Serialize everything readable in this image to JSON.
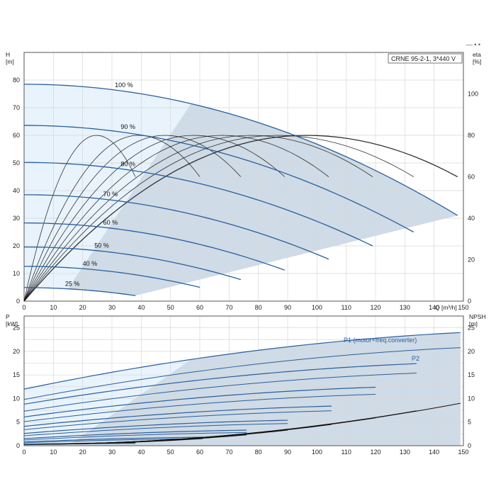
{
  "header_mark": "— • •",
  "chart_data": [
    {
      "type": "line",
      "title": "CRNE 95-2-1, 3*440 V",
      "xlabel": "Q [m³/h]",
      "ylabel": "H\n[m]",
      "ylabel_right": "eta\n[%]",
      "xlim": [
        0,
        150
      ],
      "ylim": [
        0,
        90
      ],
      "ylim_right": [
        0,
        120
      ],
      "x_ticks": [
        0,
        10,
        20,
        30,
        40,
        50,
        60,
        70,
        80,
        90,
        100,
        110,
        120,
        130,
        140,
        150
      ],
      "y_ticks": [
        0,
        10,
        20,
        30,
        40,
        50,
        60,
        70,
        80
      ],
      "y_ticks_right": [
        0,
        20,
        40,
        60,
        80,
        100
      ],
      "grid": true,
      "speed_labels": [
        "100 %",
        "90 %",
        "80 %",
        "70 %",
        "60 %",
        "50 %",
        "40 %",
        "25 %"
      ],
      "head_curves": [
        {
          "name": "100 %",
          "shut_off_head": 78.5,
          "max_flow": 148,
          "end_head": 31
        },
        {
          "name": "90 %",
          "shut_off_head": 63.6,
          "max_flow": 133,
          "end_head": 25
        },
        {
          "name": "80 %",
          "shut_off_head": 50.2,
          "max_flow": 119,
          "end_head": 20
        },
        {
          "name": "70 %",
          "shut_off_head": 38.5,
          "max_flow": 104,
          "end_head": 15.2
        },
        {
          "name": "60 %",
          "shut_off_head": 28.3,
          "max_flow": 89,
          "end_head": 11.2
        },
        {
          "name": "50 %",
          "shut_off_head": 19.6,
          "max_flow": 74,
          "end_head": 7.8
        },
        {
          "name": "40 %",
          "shut_off_head": 12.6,
          "max_flow": 60,
          "end_head": 5
        },
        {
          "name": "25 %",
          "shut_off_head": 4.9,
          "max_flow": 38,
          "end_head": 2
        }
      ],
      "efficiency_curves": [
        {
          "max_flow": 148,
          "end_eta": 60
        },
        {
          "max_flow": 133,
          "end_eta": 60
        },
        {
          "max_flow": 119,
          "end_eta": 60
        },
        {
          "max_flow": 104,
          "end_eta": 60
        },
        {
          "max_flow": 89,
          "end_eta": 60
        },
        {
          "max_flow": 74,
          "end_eta": 60
        },
        {
          "max_flow": 60,
          "end_eta": 60
        },
        {
          "max_flow": 38,
          "end_eta": 60
        }
      ],
      "peak_efficiency": 80,
      "operating_region_colors": {
        "light": "#e8f3fc",
        "dark": "#cfdbe6"
      },
      "curve_color": "#2a5f9e",
      "eta_color": "#111111"
    },
    {
      "type": "line",
      "xlabel": "",
      "ylabel": "P\n[kW]",
      "ylabel_right": "NPSH\n[m]",
      "xlim": [
        0,
        150
      ],
      "ylim": [
        0,
        27.5
      ],
      "ylim_right": [
        0,
        27.5
      ],
      "x_ticks": [
        0,
        10,
        20,
        30,
        40,
        50,
        60,
        70,
        80,
        90,
        100,
        110,
        120,
        130,
        140,
        150
      ],
      "y_ticks": [
        0,
        5,
        10,
        15,
        20,
        25
      ],
      "y_ticks_right": [
        0,
        5,
        10,
        15,
        20,
        25
      ],
      "grid": true,
      "series_labels": [
        "P1 (motor+freq.converter)",
        "P2"
      ],
      "power_curves_p1": [
        {
          "max_flow": 149,
          "start": 12,
          "end": 24
        },
        {
          "max_flow": 134,
          "start": 8.8,
          "end": 17.4
        },
        {
          "max_flow": 120,
          "start": 6.1,
          "end": 12.4
        },
        {
          "max_flow": 105,
          "start": 4.1,
          "end": 8.4
        },
        {
          "max_flow": 90,
          "start": 2.6,
          "end": 5.4
        },
        {
          "max_flow": 76,
          "start": 1.5,
          "end": 3.3
        },
        {
          "max_flow": 61,
          "start": 0.8,
          "end": 1.8
        },
        {
          "max_flow": 38,
          "start": 0.3,
          "end": 0.6
        }
      ],
      "power_curves_p2": [
        {
          "max_flow": 149,
          "start": 9.8,
          "end": 20.8
        },
        {
          "max_flow": 134,
          "start": 7.3,
          "end": 15.4
        },
        {
          "max_flow": 120,
          "start": 5.1,
          "end": 10.9
        },
        {
          "max_flow": 105,
          "start": 3.4,
          "end": 7.4
        },
        {
          "max_flow": 90,
          "start": 2.1,
          "end": 4.7
        },
        {
          "max_flow": 76,
          "start": 1.2,
          "end": 2.8
        },
        {
          "max_flow": 61,
          "start": 0.6,
          "end": 1.5
        },
        {
          "max_flow": 38,
          "start": 0.2,
          "end": 0.5
        }
      ],
      "npsh_curves": [
        {
          "max_flow": 149,
          "end": 9
        },
        {
          "max_flow": 134,
          "end": 7.4
        },
        {
          "max_flow": 120,
          "end": 5.9
        },
        {
          "max_flow": 105,
          "end": 4.5
        },
        {
          "max_flow": 90,
          "end": 3.3
        },
        {
          "max_flow": 76,
          "end": 2.3
        },
        {
          "max_flow": 61,
          "end": 1.5
        },
        {
          "max_flow": 38,
          "end": 0.7
        }
      ],
      "operating_region_colors": {
        "light": "#e8f3fc",
        "dark": "#cfdbe6"
      },
      "curve_color": "#2a5f9e",
      "npsh_color": "#111111"
    }
  ]
}
